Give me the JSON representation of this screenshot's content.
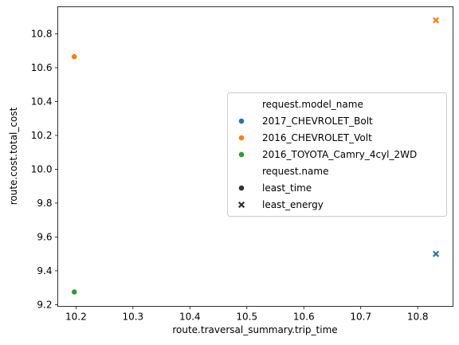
{
  "chart_data": {
    "type": "scatter",
    "xlabel": "route.traversal_summary.trip_time",
    "ylabel": "route.cost.total_cost",
    "xlim": [
      10.168,
      10.862
    ],
    "ylim": [
      9.19,
      10.96
    ],
    "xticks": [
      10.2,
      10.3,
      10.4,
      10.5,
      10.6,
      10.7,
      10.8
    ],
    "xtick_labels": [
      "10.2",
      "10.3",
      "10.4",
      "10.5",
      "10.6",
      "10.7",
      "10.8"
    ],
    "yticks": [
      9.2,
      9.4,
      9.6,
      9.8,
      10.0,
      10.2,
      10.4,
      10.6,
      10.8
    ],
    "ytick_labels": [
      "9.2",
      "9.4",
      "9.6",
      "9.8",
      "10.0",
      "10.2",
      "10.4",
      "10.6",
      "10.8"
    ],
    "grid": false,
    "legend_position": "center-right",
    "hue_title": "request.model_name",
    "style_title": "request.name",
    "hue": [
      {
        "name": "2017_CHEVROLET_Bolt",
        "color": "#1f77b4"
      },
      {
        "name": "2016_CHEVROLET_Volt",
        "color": "#ff7f0e"
      },
      {
        "name": "2016_TOYOTA_Camry_4cyl_2WD",
        "color": "#2ca02c"
      }
    ],
    "styles": [
      {
        "name": "least_time",
        "marker": "circle"
      },
      {
        "name": "least_energy",
        "marker": "x"
      }
    ],
    "points": [
      {
        "x": 10.197,
        "y": 10.665,
        "model": "2016_CHEVROLET_Volt",
        "request": "least_time"
      },
      {
        "x": 10.197,
        "y": 9.275,
        "model": "2016_TOYOTA_Camry_4cyl_2WD",
        "request": "least_time"
      },
      {
        "x": 10.832,
        "y": 10.88,
        "model": "2016_CHEVROLET_Volt",
        "request": "least_energy"
      },
      {
        "x": 10.832,
        "y": 9.5,
        "model": "2017_CHEVROLET_Bolt",
        "request": "least_energy"
      }
    ]
  }
}
